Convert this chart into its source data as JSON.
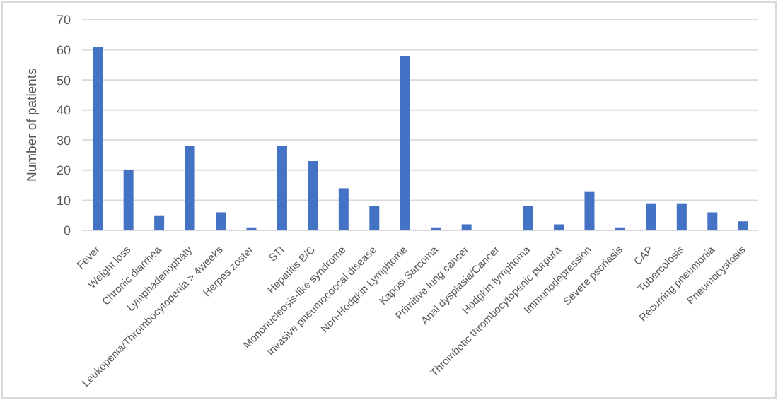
{
  "chart_data": {
    "type": "bar",
    "ylabel": "Number of patients",
    "categories": [
      "Fever",
      "Weight loss",
      "Chronic diarrhea",
      "Lymphadenophaty",
      "Leukopenia/Thrombocytopenia > 4weeks",
      "Herpes zoster",
      "STI",
      "Hepatitis B/C",
      "Mononucleosis-like syndrome",
      "Invasive pneumococcal disease",
      "Non-Hodgkin Lymphome",
      "Kaposi Sarcoma",
      "Primitive lung cancer",
      "Anal dysplasia/Cancer",
      "Hodgkin lymphoma",
      "Thrombotic thrombocytopenic purpura",
      "Immunodepression",
      "Severe psoriasis",
      "CAP",
      "Tubercolosis",
      "Recurring pneumonia",
      "Pneumocystosis"
    ],
    "values": [
      61,
      20,
      5,
      28,
      6,
      1,
      28,
      23,
      14,
      8,
      58,
      1,
      2,
      0,
      8,
      2,
      13,
      1,
      9,
      9,
      6,
      3
    ],
    "color": "#4472c4",
    "ylim": [
      0,
      70
    ],
    "yticks": [
      0,
      10,
      20,
      30,
      40,
      50,
      60,
      70
    ],
    "grid": "y"
  }
}
